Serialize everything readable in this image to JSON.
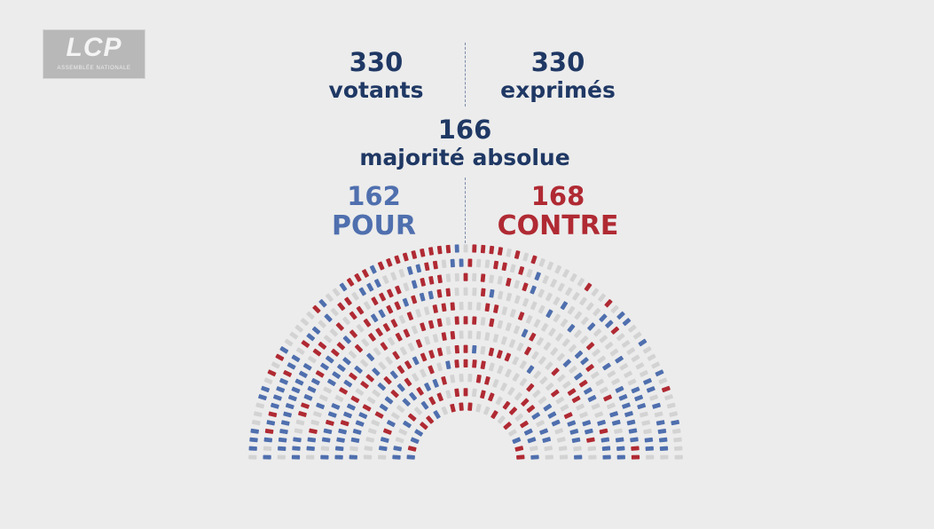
{
  "logo": {
    "name": "LCP",
    "subtitle": "ASSEMBLÉE NATIONALE"
  },
  "vote": {
    "votants": {
      "count": "330",
      "label": "votants"
    },
    "exprimes": {
      "count": "330",
      "label": "exprimés"
    },
    "majorite": {
      "count": "166",
      "label": "majorité absolue"
    },
    "pour": {
      "count": "162",
      "label": "POUR"
    },
    "contre": {
      "count": "168",
      "label": "CONTRE"
    }
  },
  "chart_data": {
    "type": "hemicycle",
    "seats_pour": 162,
    "seats_contre": 168,
    "colors": {
      "pour": "#4f6fae",
      "contre": "#b02a33",
      "empty": "#d3d3d3"
    }
  }
}
